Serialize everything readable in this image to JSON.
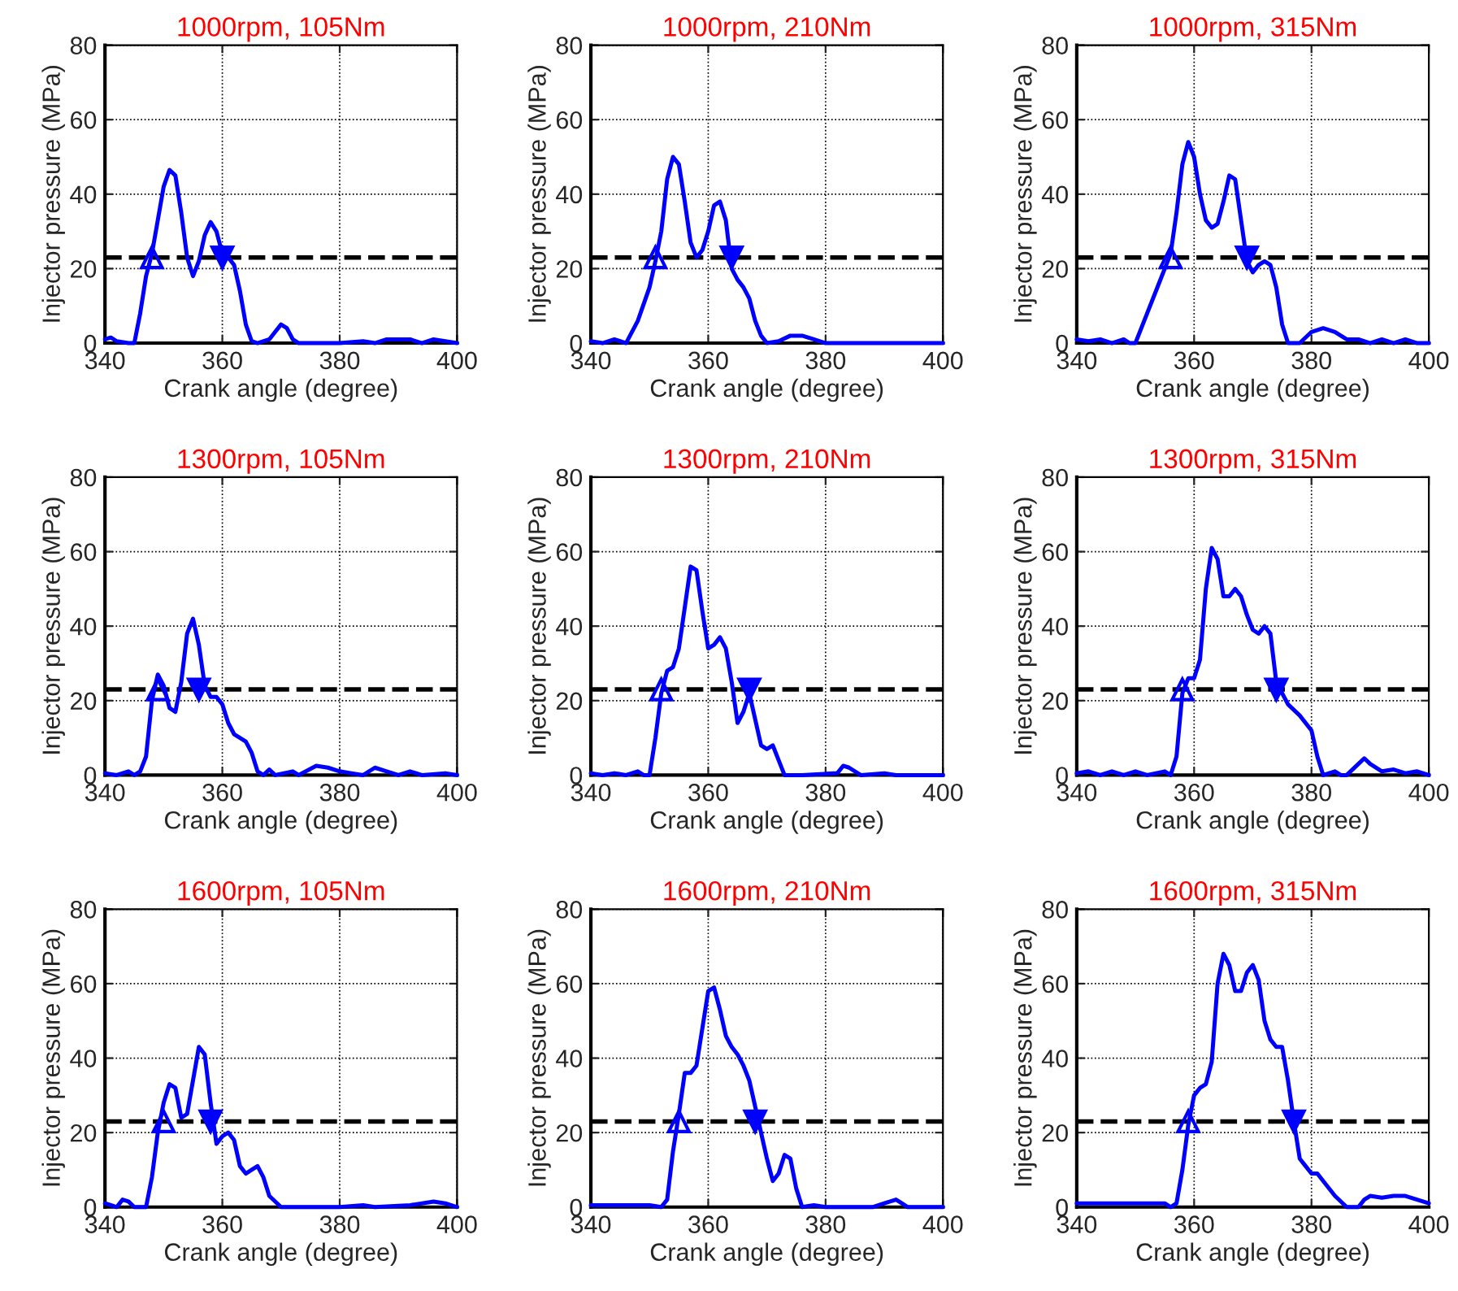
{
  "chart_data": [
    {
      "type": "line",
      "title": "1000rpm, 105Nm",
      "xlabel": "Crank angle (degree)",
      "ylabel": "Injector pressure (MPa)",
      "xlim": [
        340,
        400
      ],
      "ylim": [
        0,
        80
      ],
      "xticks": [
        340,
        360,
        380,
        400
      ],
      "yticks": [
        0,
        20,
        40,
        60,
        80
      ],
      "grid": true,
      "series": [
        {
          "color": "#0000ff",
          "x": [
            340,
            341,
            342,
            344,
            345,
            346,
            347,
            348,
            349,
            350,
            351,
            352,
            353,
            354,
            355,
            356,
            357,
            358,
            359,
            360,
            361,
            362,
            363,
            364,
            365,
            366,
            368,
            369,
            370,
            371,
            372,
            373,
            380,
            384,
            386,
            388,
            392,
            394,
            396,
            398,
            400
          ],
          "values": [
            1,
            1.5,
            0.5,
            0,
            0,
            8,
            18,
            24,
            33,
            42,
            46.5,
            45,
            35,
            23,
            18,
            22,
            29,
            32.5,
            30,
            24,
            23,
            21,
            14,
            5,
            0.5,
            0,
            1,
            3,
            5,
            4,
            1,
            0,
            0,
            0.5,
            0,
            1,
            1,
            0,
            1,
            0.5,
            0
          ]
        },
        {
          "type": "scatter",
          "marker": "triangle",
          "color": "#0000ff",
          "x": [
            348
          ],
          "values": [
            23
          ]
        },
        {
          "type": "scatter",
          "marker": "triangle_down",
          "color": "#0000ff",
          "x": [
            360
          ],
          "values": [
            23
          ]
        }
      ],
      "ref_lines": [
        {
          "axis": "y",
          "value": 23,
          "color": "#000000",
          "line_style": "dashed"
        }
      ]
    },
    {
      "type": "line",
      "title": "1000rpm, 210Nm",
      "xlabel": "Crank angle (degree)",
      "ylabel": "Injector pressure (MPa)",
      "xlim": [
        340,
        400
      ],
      "ylim": [
        0,
        80
      ],
      "xticks": [
        340,
        360,
        380,
        400
      ],
      "yticks": [
        0,
        20,
        40,
        60,
        80
      ],
      "grid": true,
      "series": [
        {
          "color": "#0000ff",
          "x": [
            340,
            342,
            344,
            345,
            346,
            348,
            350,
            351,
            352,
            353,
            354,
            355,
            356,
            357,
            358,
            359,
            360,
            361,
            362,
            363,
            364,
            365,
            366,
            367,
            368,
            369,
            370,
            372,
            374,
            376,
            378,
            380,
            384,
            400
          ],
          "values": [
            0.5,
            0,
            1,
            0.5,
            0,
            6,
            15,
            22,
            30,
            44,
            50,
            48,
            38,
            27,
            23,
            25,
            30,
            37,
            38,
            33,
            20,
            17,
            15,
            12,
            6,
            2,
            0,
            0.5,
            2,
            2,
            1,
            0,
            0,
            0
          ]
        },
        {
          "type": "scatter",
          "marker": "triangle",
          "color": "#0000ff",
          "x": [
            351
          ],
          "values": [
            23
          ]
        },
        {
          "type": "scatter",
          "marker": "triangle_down",
          "color": "#0000ff",
          "x": [
            364
          ],
          "values": [
            23
          ]
        }
      ],
      "ref_lines": [
        {
          "axis": "y",
          "value": 23,
          "color": "#000000",
          "line_style": "dashed"
        }
      ]
    },
    {
      "type": "line",
      "title": "1000rpm, 315Nm",
      "xlabel": "Crank angle (degree)",
      "ylabel": "Injector pressure (MPa)",
      "xlim": [
        340,
        400
      ],
      "ylim": [
        0,
        80
      ],
      "xticks": [
        340,
        360,
        380,
        400
      ],
      "yticks": [
        0,
        20,
        40,
        60,
        80
      ],
      "grid": true,
      "series": [
        {
          "color": "#0000ff",
          "x": [
            340,
            342,
            344,
            346,
            348,
            349,
            350,
            352,
            354,
            355,
            356,
            357,
            358,
            359,
            360,
            361,
            362,
            363,
            364,
            365,
            366,
            367,
            368,
            369,
            370,
            371,
            372,
            373,
            374,
            375,
            376,
            378,
            380,
            382,
            384,
            386,
            388,
            390,
            392,
            394,
            396,
            398,
            400
          ],
          "values": [
            1,
            0.5,
            1,
            0,
            1,
            0,
            0,
            8,
            16,
            20,
            24,
            35,
            48,
            54,
            50,
            40,
            33,
            31,
            32,
            38,
            45,
            44,
            33,
            22,
            19,
            21,
            22,
            21,
            15,
            5,
            0,
            0,
            3,
            4,
            3,
            1,
            1,
            0,
            1,
            0,
            1,
            0,
            0
          ]
        },
        {
          "type": "scatter",
          "marker": "triangle",
          "color": "#0000ff",
          "x": [
            356
          ],
          "values": [
            23
          ]
        },
        {
          "type": "scatter",
          "marker": "triangle_down",
          "color": "#0000ff",
          "x": [
            369
          ],
          "values": [
            23
          ]
        }
      ],
      "ref_lines": [
        {
          "axis": "y",
          "value": 23,
          "color": "#000000",
          "line_style": "dashed"
        }
      ]
    },
    {
      "type": "line",
      "title": "1300rpm, 105Nm",
      "xlabel": "Crank angle (degree)",
      "ylabel": "Injector pressure (MPa)",
      "xlim": [
        340,
        400
      ],
      "ylim": [
        0,
        80
      ],
      "xticks": [
        340,
        360,
        380,
        400
      ],
      "yticks": [
        0,
        20,
        40,
        60,
        80
      ],
      "grid": true,
      "series": [
        {
          "color": "#0000ff",
          "x": [
            340,
            342,
            344,
            345,
            346,
            347,
            348,
            349,
            350,
            351,
            352,
            353,
            354,
            355,
            356,
            357,
            358,
            359,
            360,
            361,
            362,
            364,
            365,
            366,
            367,
            368,
            369,
            372,
            373,
            376,
            378,
            380,
            382,
            384,
            386,
            388,
            390,
            392,
            394,
            398,
            400
          ],
          "values": [
            0.5,
            0,
            1,
            0,
            1,
            5,
            20,
            27,
            24,
            18,
            17,
            25,
            38,
            42,
            35,
            24,
            21,
            21,
            19,
            14,
            11,
            9,
            6,
            1,
            0,
            1.5,
            0,
            1,
            0,
            2.5,
            2,
            1,
            0.5,
            0,
            2,
            1,
            0,
            1,
            0,
            0.5,
            0
          ]
        },
        {
          "type": "scatter",
          "marker": "triangle",
          "color": "#0000ff",
          "x": [
            349
          ],
          "values": [
            23
          ]
        },
        {
          "type": "scatter",
          "marker": "triangle_down",
          "color": "#0000ff",
          "x": [
            356
          ],
          "values": [
            23
          ]
        }
      ],
      "ref_lines": [
        {
          "axis": "y",
          "value": 23,
          "color": "#000000",
          "line_style": "dashed"
        }
      ]
    },
    {
      "type": "line",
      "title": "1300rpm, 210Nm",
      "xlabel": "Crank angle (degree)",
      "ylabel": "Injector pressure (MPa)",
      "xlim": [
        340,
        400
      ],
      "ylim": [
        0,
        80
      ],
      "xticks": [
        340,
        360,
        380,
        400
      ],
      "yticks": [
        0,
        20,
        40,
        60,
        80
      ],
      "grid": true,
      "series": [
        {
          "color": "#0000ff",
          "x": [
            340,
            342,
            344,
            346,
            348,
            349,
            350,
            351,
            352,
            353,
            354,
            355,
            356,
            357,
            358,
            359,
            360,
            361,
            362,
            363,
            364,
            365,
            366,
            367,
            368,
            369,
            370,
            371,
            372,
            373,
            376,
            382,
            383,
            384,
            386,
            390,
            392,
            400
          ],
          "values": [
            0.5,
            0,
            0.5,
            0,
            1,
            0,
            0,
            10,
            22,
            28,
            29,
            34,
            45,
            56,
            55,
            44,
            34,
            35,
            37,
            34,
            25,
            14,
            17,
            22,
            15,
            8,
            7,
            8,
            4,
            0,
            0,
            0.5,
            2.5,
            2,
            0,
            0.5,
            0,
            0
          ]
        },
        {
          "type": "scatter",
          "marker": "triangle",
          "color": "#0000ff",
          "x": [
            352
          ],
          "values": [
            23
          ]
        },
        {
          "type": "scatter",
          "marker": "triangle_down",
          "color": "#0000ff",
          "x": [
            367
          ],
          "values": [
            23
          ]
        }
      ],
      "ref_lines": [
        {
          "axis": "y",
          "value": 23,
          "color": "#000000",
          "line_style": "dashed"
        }
      ]
    },
    {
      "type": "line",
      "title": "1300rpm, 315Nm",
      "xlabel": "Crank angle (degree)",
      "ylabel": "Injector pressure (MPa)",
      "xlim": [
        340,
        400
      ],
      "ylim": [
        0,
        80
      ],
      "xticks": [
        340,
        360,
        380,
        400
      ],
      "yticks": [
        0,
        20,
        40,
        60,
        80
      ],
      "grid": true,
      "series": [
        {
          "color": "#0000ff",
          "x": [
            340,
            342,
            344,
            346,
            348,
            350,
            352,
            355,
            356,
            357,
            358,
            359,
            360,
            361,
            362,
            363,
            364,
            365,
            366,
            367,
            368,
            369,
            370,
            371,
            372,
            373,
            374,
            375,
            376,
            378,
            380,
            381,
            382,
            384,
            385,
            386,
            388,
            389,
            390,
            392,
            394,
            396,
            398,
            400
          ],
          "values": [
            0.5,
            1,
            0,
            1,
            0,
            1,
            0,
            1,
            0,
            5,
            22,
            26,
            26,
            31,
            50,
            61,
            58,
            48,
            48,
            50,
            48,
            43,
            39,
            38,
            40,
            38,
            25,
            22,
            19,
            16,
            12,
            5,
            0,
            1,
            0,
            0,
            3,
            4.5,
            3,
            1,
            1.5,
            0.5,
            1,
            0
          ]
        },
        {
          "type": "scatter",
          "marker": "triangle",
          "color": "#0000ff",
          "x": [
            358
          ],
          "values": [
            23
          ]
        },
        {
          "type": "scatter",
          "marker": "triangle_down",
          "color": "#0000ff",
          "x": [
            374
          ],
          "values": [
            23
          ]
        }
      ],
      "ref_lines": [
        {
          "axis": "y",
          "value": 23,
          "color": "#000000",
          "line_style": "dashed"
        }
      ]
    },
    {
      "type": "line",
      "title": "1600rpm, 105Nm",
      "xlabel": "Crank angle (degree)",
      "ylabel": "Injector pressure (MPa)",
      "xlim": [
        340,
        400
      ],
      "ylim": [
        0,
        80
      ],
      "xticks": [
        340,
        360,
        380,
        400
      ],
      "yticks": [
        0,
        20,
        40,
        60,
        80
      ],
      "grid": true,
      "series": [
        {
          "color": "#0000ff",
          "x": [
            340,
            341,
            342,
            343,
            344,
            345,
            347,
            348,
            349,
            350,
            351,
            352,
            353,
            354,
            355,
            356,
            357,
            358,
            359,
            360,
            361,
            362,
            363,
            364,
            365,
            366,
            367,
            368,
            370,
            372,
            380,
            384,
            386,
            392,
            396,
            398,
            400
          ],
          "values": [
            1,
            0.5,
            0,
            2,
            1.5,
            0,
            0,
            8,
            20,
            28,
            33,
            32,
            24,
            25,
            34,
            43,
            41,
            28,
            17,
            19,
            20,
            18,
            11,
            9,
            10,
            11,
            8,
            3,
            0,
            0,
            0,
            0.5,
            0,
            0.5,
            1.5,
            1,
            0
          ]
        },
        {
          "type": "scatter",
          "marker": "triangle",
          "color": "#0000ff",
          "x": [
            350
          ],
          "values": [
            23
          ]
        },
        {
          "type": "scatter",
          "marker": "triangle_down",
          "color": "#0000ff",
          "x": [
            358
          ],
          "values": [
            23
          ]
        }
      ],
      "ref_lines": [
        {
          "axis": "y",
          "value": 23,
          "color": "#000000",
          "line_style": "dashed"
        }
      ]
    },
    {
      "type": "line",
      "title": "1600rpm, 210Nm",
      "xlabel": "Crank angle (degree)",
      "ylabel": "Injector pressure (MPa)",
      "xlim": [
        340,
        400
      ],
      "ylim": [
        0,
        80
      ],
      "xticks": [
        340,
        360,
        380,
        400
      ],
      "yticks": [
        0,
        20,
        40,
        60,
        80
      ],
      "grid": true,
      "series": [
        {
          "color": "#0000ff",
          "x": [
            340,
            344,
            350,
            352,
            353,
            354,
            355,
            356,
            357,
            358,
            359,
            360,
            361,
            362,
            363,
            364,
            365,
            366,
            367,
            368,
            369,
            370,
            371,
            372,
            373,
            374,
            375,
            376,
            378,
            380,
            388,
            390,
            392,
            393,
            394,
            400
          ],
          "values": [
            0.5,
            0.5,
            0.5,
            0,
            2,
            15,
            25,
            36,
            36,
            38,
            48,
            58,
            59,
            53,
            46,
            43,
            41,
            38,
            34,
            27,
            20,
            13,
            7,
            9,
            14,
            13,
            5,
            0,
            0.5,
            0,
            0,
            1,
            2,
            1,
            0,
            0
          ]
        },
        {
          "type": "scatter",
          "marker": "triangle",
          "color": "#0000ff",
          "x": [
            355
          ],
          "values": [
            23
          ]
        },
        {
          "type": "scatter",
          "marker": "triangle_down",
          "color": "#0000ff",
          "x": [
            368
          ],
          "values": [
            23
          ]
        }
      ],
      "ref_lines": [
        {
          "axis": "y",
          "value": 23,
          "color": "#000000",
          "line_style": "dashed"
        }
      ]
    },
    {
      "type": "line",
      "title": "1600rpm, 315Nm",
      "xlabel": "Crank angle (degree)",
      "ylabel": "Injector pressure (MPa)",
      "xlim": [
        340,
        400
      ],
      "ylim": [
        0,
        80
      ],
      "xticks": [
        340,
        360,
        380,
        400
      ],
      "yticks": [
        0,
        20,
        40,
        60,
        80
      ],
      "grid": true,
      "series": [
        {
          "color": "#0000ff",
          "x": [
            340,
            355,
            356,
            357,
            358,
            359,
            360,
            361,
            362,
            363,
            364,
            365,
            366,
            367,
            368,
            369,
            370,
            371,
            372,
            373,
            374,
            375,
            376,
            377,
            378,
            379,
            380,
            381,
            382,
            384,
            386,
            388,
            389,
            390,
            392,
            394,
            396,
            398,
            400
          ],
          "values": [
            1,
            1,
            0,
            1,
            10,
            22,
            30,
            32,
            33,
            39,
            60,
            68,
            65,
            58,
            58,
            63,
            65,
            61,
            50,
            45,
            43,
            43,
            34,
            23,
            13,
            11,
            9,
            9,
            7,
            3,
            0,
            0,
            2,
            3,
            2.5,
            3,
            3,
            2,
            1
          ]
        },
        {
          "type": "scatter",
          "marker": "triangle",
          "color": "#0000ff",
          "x": [
            359
          ],
          "values": [
            23
          ]
        },
        {
          "type": "scatter",
          "marker": "triangle_down",
          "color": "#0000ff",
          "x": [
            377
          ],
          "values": [
            23
          ]
        }
      ],
      "ref_lines": [
        {
          "axis": "y",
          "value": 23,
          "color": "#000000",
          "line_style": "dashed"
        }
      ]
    }
  ]
}
